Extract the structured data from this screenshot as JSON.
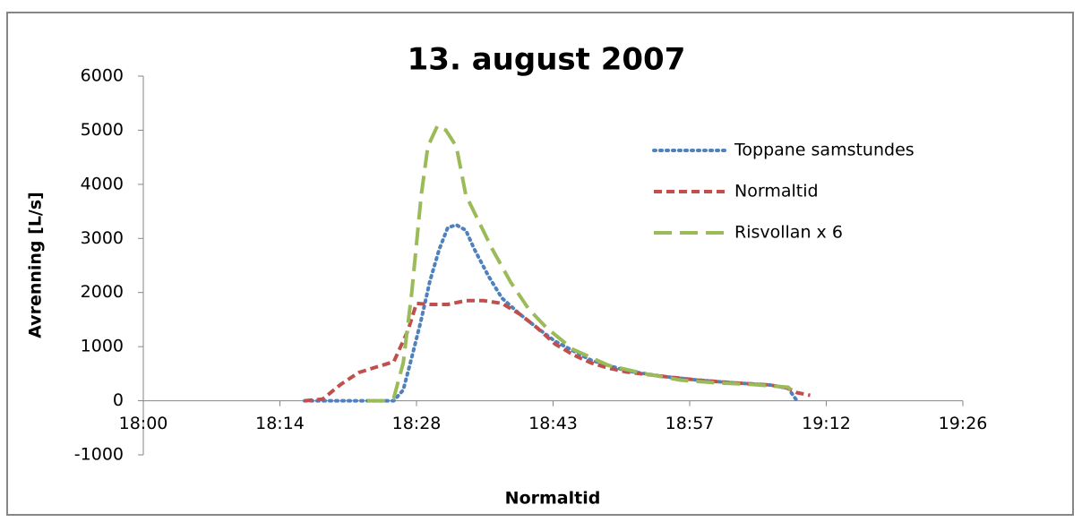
{
  "chart_data": {
    "type": "line",
    "title": "13. august 2007",
    "x_label": "Normaltid",
    "y_label": "Avrenning [L/s]",
    "xlim": [
      0,
      86.4
    ],
    "xticks": [
      {
        "value": 0,
        "label": "18:00"
      },
      {
        "value": 14.4,
        "label": "18:14"
      },
      {
        "value": 28.8,
        "label": "18:28"
      },
      {
        "value": 43.2,
        "label": "18:43"
      },
      {
        "value": 57.6,
        "label": "18:57"
      },
      {
        "value": 72,
        "label": "19:12"
      },
      {
        "value": 86.4,
        "label": "19:26"
      }
    ],
    "ylim": [
      -1000,
      6000
    ],
    "yticks": [
      -1000,
      0,
      1000,
      2000,
      3000,
      4000,
      5000,
      6000
    ],
    "legend": "right",
    "series": [
      {
        "name": "Toppane samstundes",
        "color": "#4f81bd",
        "dash": "dotted",
        "x": [
          17,
          26.4,
          27.4,
          28.3,
          29.3,
          30.2,
          31.2,
          32.1,
          33.0,
          34.0,
          34.9,
          36.4,
          37.8,
          39.7,
          41.5,
          43.4,
          47.2,
          51.0,
          54.8,
          58.5,
          62.3,
          66.1,
          68.0,
          68.9
        ],
        "values": [
          0,
          0,
          200,
          800,
          1500,
          2200,
          2800,
          3200,
          3250,
          3150,
          2800,
          2300,
          1900,
          1600,
          1350,
          1100,
          750,
          550,
          450,
          380,
          330,
          290,
          230,
          0
        ]
      },
      {
        "name": "Normaltid",
        "color": "#c0504d",
        "dash": "dashed",
        "x": [
          17,
          18.9,
          20.8,
          22.7,
          24.5,
          26.4,
          27.9,
          28.8,
          30.2,
          32.1,
          34.0,
          35.9,
          37.8,
          39.7,
          41.5,
          43.4,
          45.3,
          47.2,
          49.1,
          51.0,
          54.8,
          58.5,
          62.3,
          66.1,
          68.0,
          68.9,
          70.3
        ],
        "values": [
          0,
          30,
          300,
          520,
          620,
          720,
          1300,
          1800,
          1780,
          1780,
          1850,
          1850,
          1800,
          1600,
          1350,
          1050,
          850,
          700,
          600,
          530,
          450,
          380,
          330,
          290,
          230,
          150,
          100
        ]
      },
      {
        "name": "Risvollan x 6",
        "color": "#9bbb59",
        "dash": "longdash",
        "x": [
          23.6,
          25.5,
          26.4,
          27.4,
          28.3,
          29.3,
          30.0,
          31.0,
          31.9,
          33.0,
          34.0,
          35.4,
          36.8,
          38.7,
          40.6,
          42.5,
          45.3,
          49.1,
          52.9,
          56.7,
          60.4,
          64.2,
          68.0,
          68.5
        ],
        "values": [
          0,
          0,
          50,
          700,
          2000,
          3800,
          4700,
          5080,
          5000,
          4700,
          3800,
          3300,
          2800,
          2200,
          1700,
          1350,
          950,
          650,
          500,
          380,
          330,
          300,
          250,
          150
        ]
      }
    ]
  }
}
